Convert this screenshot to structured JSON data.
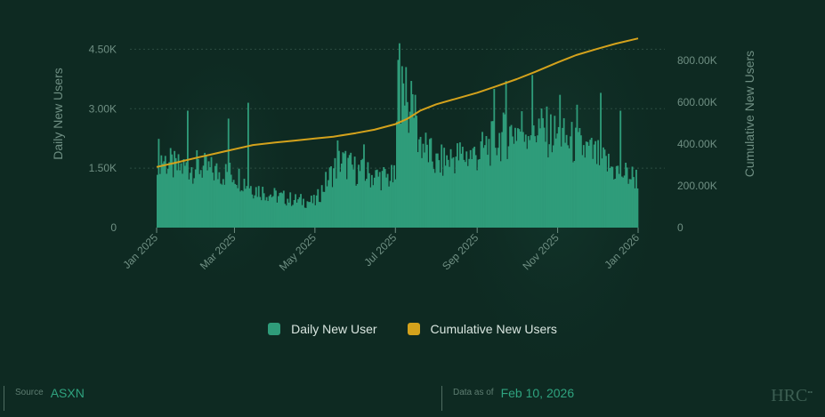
{
  "chart_data": {
    "type": "bar+line",
    "title": "",
    "x_tick_labels": [
      "Jan 2025",
      "Mar 2025",
      "May 2025",
      "Jul 2025",
      "Sep 2025",
      "Nov 2025",
      "Jan 2026"
    ],
    "y_left": {
      "label": "Daily New Users",
      "ticks": [
        "0",
        "1.50K",
        "3.00K",
        "4.50K"
      ],
      "lim": [
        0,
        4800
      ]
    },
    "y_right": {
      "label": "Cumulative New Users",
      "ticks": [
        "0",
        "200.00K",
        "400.00K",
        "600.00K",
        "800.00K"
      ],
      "lim": [
        0,
        910000
      ]
    },
    "series": [
      {
        "name": "Daily New User",
        "type": "bar",
        "axis": "left",
        "color": "#2f9c7a",
        "anchors": [
          [
            "2025-01-01",
            1850
          ],
          [
            "2025-01-15",
            1500
          ],
          [
            "2025-02-01",
            1550
          ],
          [
            "2025-02-15",
            1400
          ],
          [
            "2025-03-01",
            1350
          ],
          [
            "2025-03-15",
            1000
          ],
          [
            "2025-04-01",
            800
          ],
          [
            "2025-04-15",
            700
          ],
          [
            "2025-05-01",
            650
          ],
          [
            "2025-05-10",
            1200
          ],
          [
            "2025-05-20",
            1700
          ],
          [
            "2025-06-01",
            1450
          ],
          [
            "2025-06-15",
            1300
          ],
          [
            "2025-07-01",
            1250
          ],
          [
            "2025-07-03",
            3600
          ],
          [
            "2025-07-10",
            3000
          ],
          [
            "2025-07-20",
            2200
          ],
          [
            "2025-08-01",
            1600
          ],
          [
            "2025-08-15",
            1800
          ],
          [
            "2025-09-01",
            1850
          ],
          [
            "2025-09-15",
            2200
          ],
          [
            "2025-10-01",
            2500
          ],
          [
            "2025-10-15",
            2550
          ],
          [
            "2025-11-01",
            2300
          ],
          [
            "2025-11-15",
            2100
          ],
          [
            "2025-12-01",
            1800
          ],
          [
            "2025-12-15",
            1450
          ],
          [
            "2026-01-01",
            1250
          ]
        ],
        "peaks": [
          [
            "2025-01-24",
            2950
          ],
          [
            "2025-02-24",
            2750
          ],
          [
            "2025-03-11",
            3150
          ],
          [
            "2025-05-18",
            2200
          ],
          [
            "2025-06-07",
            2100
          ],
          [
            "2025-07-04",
            4650
          ],
          [
            "2025-07-09",
            4050
          ],
          [
            "2025-07-13",
            3700
          ],
          [
            "2025-07-16",
            3350
          ],
          [
            "2025-09-14",
            3500
          ],
          [
            "2025-09-23",
            3700
          ],
          [
            "2025-10-13",
            3850
          ],
          [
            "2025-11-03",
            3350
          ],
          [
            "2025-11-16",
            3100
          ],
          [
            "2025-12-04",
            3400
          ],
          [
            "2025-12-19",
            2950
          ]
        ]
      },
      {
        "name": "Cumulative New Users",
        "type": "line",
        "axis": "right",
        "color": "#d4a21c",
        "points": [
          [
            "2025-01-01",
            290000
          ],
          [
            "2025-01-15",
            310000
          ],
          [
            "2025-02-01",
            335000
          ],
          [
            "2025-02-15",
            355000
          ],
          [
            "2025-03-01",
            375000
          ],
          [
            "2025-03-15",
            395000
          ],
          [
            "2025-04-01",
            407000
          ],
          [
            "2025-04-15",
            416000
          ],
          [
            "2025-05-01",
            426000
          ],
          [
            "2025-05-15",
            435000
          ],
          [
            "2025-06-01",
            452000
          ],
          [
            "2025-06-15",
            468000
          ],
          [
            "2025-07-01",
            495000
          ],
          [
            "2025-07-10",
            520000
          ],
          [
            "2025-07-20",
            560000
          ],
          [
            "2025-08-01",
            590000
          ],
          [
            "2025-08-15",
            615000
          ],
          [
            "2025-09-01",
            645000
          ],
          [
            "2025-09-15",
            675000
          ],
          [
            "2025-10-01",
            710000
          ],
          [
            "2025-10-15",
            745000
          ],
          [
            "2025-11-01",
            790000
          ],
          [
            "2025-11-15",
            825000
          ],
          [
            "2025-12-01",
            855000
          ],
          [
            "2025-12-15",
            880000
          ],
          [
            "2026-01-01",
            905000
          ]
        ]
      }
    ],
    "x_range": [
      "2025-01-01",
      "2026-01-01"
    ],
    "grid": "horizontal dashed",
    "legend_position": "bottom-center"
  },
  "legend": {
    "daily_label": "Daily New User",
    "cumulative_label": "Cumulative New Users"
  },
  "footer": {
    "source_label": "Source",
    "source_value": "ASXN",
    "date_label": "Data as of",
    "date_value": "Feb 10, 2026",
    "brand_text": "HRC",
    "brand_mark": "▪▪"
  },
  "colors": {
    "background": "#0e2a22",
    "bar": "#2f9c7a",
    "line": "#d4a21c",
    "text_muted": "#6f8f83",
    "accent": "#2fa37f"
  }
}
